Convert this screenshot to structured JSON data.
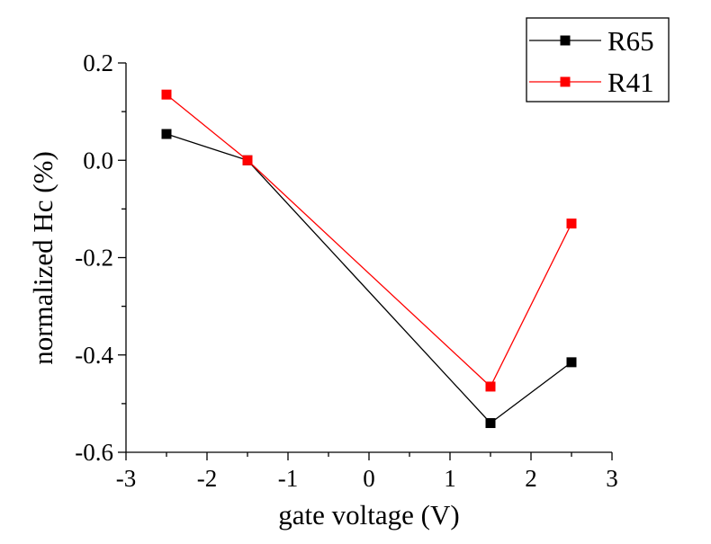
{
  "chart_data": {
    "type": "line",
    "title": "",
    "xlabel": "gate voltage (V)",
    "ylabel": "normalized Hc (%)",
    "xlim": [
      -3,
      3
    ],
    "ylim": [
      -0.6,
      0.2
    ],
    "xticks": [
      -3,
      -2,
      -1,
      0,
      1,
      2,
      3
    ],
    "xtick_labels": [
      "-3",
      "-2",
      "-1",
      "0",
      "1",
      "2",
      "3"
    ],
    "yticks": [
      -0.6,
      -0.4,
      -0.2,
      0.0,
      0.2
    ],
    "ytick_labels": [
      "-0.6",
      "-0.4",
      "-0.2",
      "0.0",
      "0.2"
    ],
    "grid": false,
    "legend_position": "top-right",
    "series": [
      {
        "name": "R65",
        "color": "#000000",
        "marker": "square",
        "x": [
          -2.5,
          -1.5,
          1.5,
          2.5
        ],
        "y": [
          0.054,
          0.0,
          -0.54,
          -0.415
        ]
      },
      {
        "name": "R41",
        "color": "#ff0000",
        "marker": "square",
        "x": [
          -2.5,
          -1.5,
          1.5,
          2.5
        ],
        "y": [
          0.135,
          0.0,
          -0.465,
          -0.13
        ]
      }
    ]
  }
}
